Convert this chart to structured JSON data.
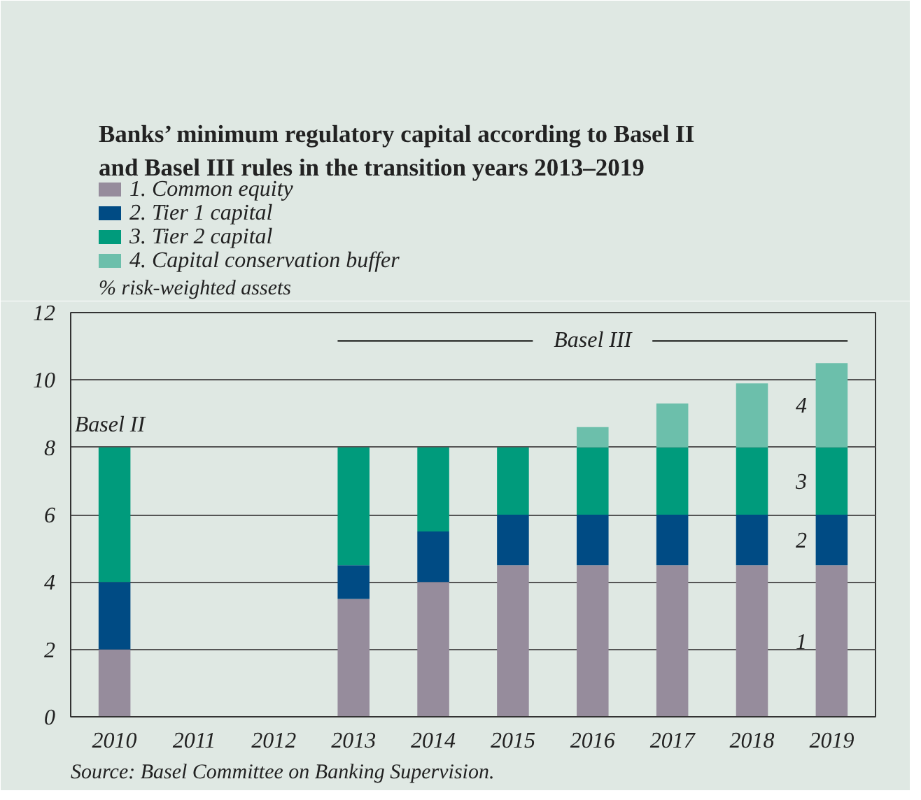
{
  "chart_data": {
    "type": "bar",
    "stacked": true,
    "title": "Banks’ minimum regulatory capital according to Basel II and Basel III rules in the transition years 2013–2019",
    "ylabel": "% risk-weighted assets",
    "categories": [
      "2010",
      "2011",
      "2012",
      "2013",
      "2014",
      "2015",
      "2016",
      "2017",
      "2018",
      "2019"
    ],
    "series": [
      {
        "name": "1. Common equity",
        "color": "#968c9c",
        "values": [
          2,
          null,
          null,
          3.5,
          4,
          4.5,
          4.5,
          4.5,
          4.5,
          4.5
        ]
      },
      {
        "name": "2. Tier 1 capital",
        "color": "#004b84",
        "values": [
          2,
          null,
          null,
          1,
          1.5,
          1.5,
          1.5,
          1.5,
          1.5,
          1.5
        ]
      },
      {
        "name": "3. Tier 2 capital",
        "color": "#009b7c",
        "values": [
          4,
          null,
          null,
          3.5,
          2.5,
          2,
          2,
          2,
          2,
          2
        ]
      },
      {
        "name": "4. Capital conservation buffer",
        "color": "#6cbfab",
        "values": [
          null,
          null,
          null,
          null,
          null,
          null,
          0.6,
          1.3,
          1.9,
          2.5
        ]
      }
    ],
    "ylim": [
      0,
      12
    ],
    "yticks": [
      0,
      2,
      4,
      6,
      8,
      10,
      12
    ],
    "grid": "y",
    "legend": "top left",
    "annotations": [
      "Basel II",
      "Basel III",
      "1",
      "2",
      "3",
      "4",
      "Source: Basel Committee on Banking Supervision."
    ]
  }
}
